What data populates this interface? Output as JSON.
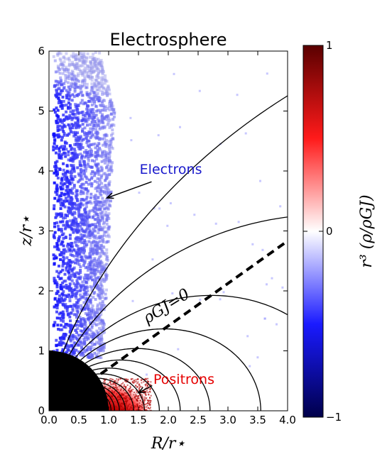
{
  "chart_data": {
    "type": "heatmap",
    "title": "Electrosphere",
    "xlabel": "R/r⋆",
    "ylabel": "z/r⋆",
    "xlim": [
      0.0,
      4.0
    ],
    "ylim": [
      0,
      6
    ],
    "xticks": [
      "0.0",
      "0.5",
      "1.0",
      "1.5",
      "2.0",
      "2.5",
      "3.0",
      "3.5",
      "4.0"
    ],
    "yticks": [
      "0",
      "1",
      "2",
      "3",
      "4",
      "5",
      "6"
    ],
    "colorbar": {
      "label": "r³ (ρ/ρGJ)",
      "min": -1,
      "max": 1,
      "tick_labels": [
        "−1",
        "0",
        "1"
      ],
      "colormap": [
        "#00004a",
        "#1a1aff",
        "#ffffff",
        "#ff1a1a",
        "#5a0000"
      ]
    },
    "star": {
      "radius": 1.0,
      "color": "#000000"
    },
    "dipole_field_line_equatorial_radii": [
      1.04,
      1.1,
      1.18,
      1.28,
      1.42,
      1.6,
      1.85,
      2.2,
      2.7,
      3.55,
      5.0,
      8.5,
      18.0
    ],
    "null_surface": {
      "label": "ρGJ=0",
      "theta_deg": 54.7
    },
    "annotations": [
      {
        "text": "Electrons",
        "color": "#1a1acc",
        "x": 1.52,
        "y": 3.95,
        "arrow_to": [
          0.97,
          3.55
        ]
      },
      {
        "text": "Positrons",
        "color": "#e60000",
        "x": 1.75,
        "y": 0.45,
        "arrow_to": [
          1.5,
          0.3
        ]
      }
    ],
    "charge_regions": [
      {
        "name": "Electrons",
        "sign": -1,
        "R_range": [
          0.05,
          1.05
        ],
        "z_range": [
          0.9,
          6.0
        ]
      },
      {
        "name": "Positrons",
        "sign": 1,
        "R_range": [
          0.9,
          1.7
        ],
        "z_range": [
          0.0,
          0.55
        ]
      }
    ]
  }
}
